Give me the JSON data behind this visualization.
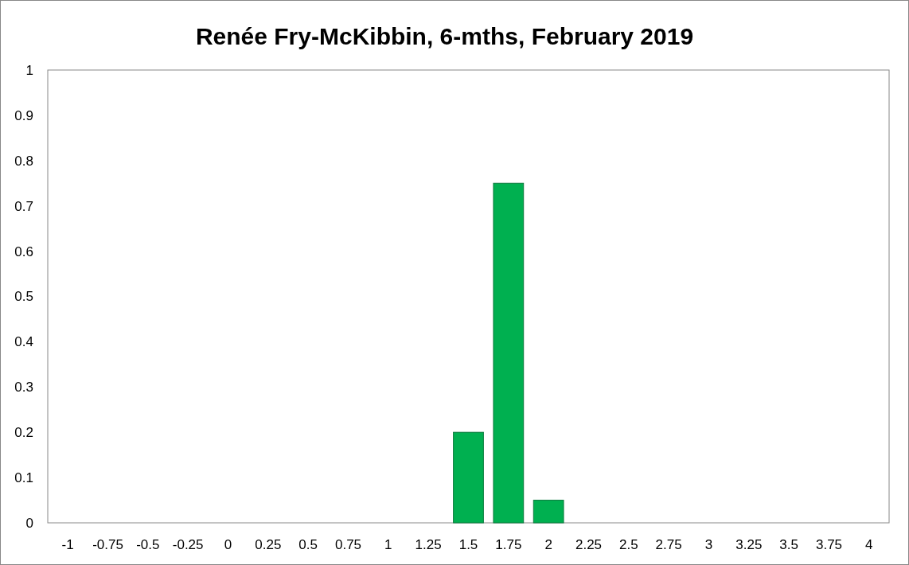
{
  "chart_data": {
    "type": "bar",
    "title": "Renée Fry-McKibbin, 6-mths, February 2019",
    "categories": [
      "-1",
      "-0.75",
      "-0.5",
      "-0.25",
      "0",
      "0.25",
      "0.5",
      "0.75",
      "1",
      "1.25",
      "1.5",
      "1.75",
      "2",
      "2.25",
      "2.5",
      "2.75",
      "3",
      "3.25",
      "3.5",
      "3.75",
      "4"
    ],
    "values": [
      0,
      0,
      0,
      0,
      0,
      0,
      0,
      0,
      0,
      0,
      0.2,
      0.75,
      0.05,
      0,
      0,
      0,
      0,
      0,
      0,
      0,
      0
    ],
    "color": "#00b050",
    "ylim": [
      0,
      1
    ],
    "yticks": [
      0,
      0.1,
      0.2,
      0.3,
      0.4,
      0.5,
      0.6,
      0.7,
      0.8,
      0.9,
      1
    ],
    "grid": false
  }
}
